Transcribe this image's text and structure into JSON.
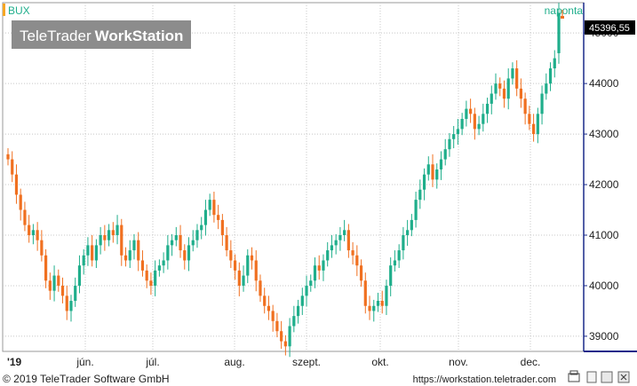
{
  "symbol": "BUX",
  "period": "naponta",
  "watermark": {
    "brand_light": "TeleTrader",
    "brand_bold": "WorkStation"
  },
  "last_price": "45396,55",
  "footer": {
    "copyright": "© 2019 TeleTrader Software GmbH",
    "url": "https://workstation.teletrader.com"
  },
  "colors": {
    "up": "#1fae8b",
    "down": "#f07020",
    "grid": "#c8c8c8",
    "axis": "#1a2a8a",
    "accent": "#f5a623"
  },
  "chart_data": {
    "type": "candlestick",
    "x_tick_labels": [
      "'19",
      "jún.",
      "júl.",
      "aug.",
      "szept.",
      "okt.",
      "nov.",
      "dec."
    ],
    "y_tick_labels": [
      "39000",
      "40000",
      "41000",
      "42000",
      "43000",
      "44000",
      "45000"
    ],
    "ylim": [
      38700,
      45600
    ],
    "grid": true,
    "series": [
      {
        "name": "BUX",
        "close": [
          42500,
          42200,
          41800,
          41500,
          41200,
          41000,
          41100,
          40900,
          40600,
          40100,
          39900,
          40200,
          40000,
          39800,
          39500,
          39700,
          40000,
          40400,
          40600,
          40800,
          40500,
          40800,
          41000,
          40900,
          41100,
          41000,
          41200,
          40600,
          40500,
          40700,
          40900,
          40500,
          40300,
          40100,
          40000,
          40300,
          40400,
          40500,
          40800,
          40900,
          41000,
          40700,
          40500,
          40800,
          40900,
          41100,
          41200,
          41500,
          41700,
          41400,
          41300,
          41000,
          40700,
          40500,
          40300,
          40000,
          40200,
          40600,
          40500,
          40100,
          39800,
          39600,
          39500,
          39300,
          39100,
          38900,
          38800,
          39200,
          39400,
          39600,
          39800,
          40000,
          40100,
          40400,
          40300,
          40500,
          40700,
          40800,
          40900,
          41000,
          41100,
          40700,
          40600,
          40400,
          40100,
          39600,
          39500,
          39600,
          39700,
          39600,
          40000,
          40400,
          40500,
          40700,
          41000,
          41100,
          41300,
          41700,
          41900,
          42200,
          42400,
          42100,
          42300,
          42500,
          42700,
          42900,
          43000,
          43100,
          43300,
          43500,
          43400,
          43100,
          43200,
          43400,
          43600,
          43800,
          44000,
          43900,
          43700,
          44100,
          44300,
          43900,
          43700,
          43400,
          43200,
          43000,
          43400,
          43800,
          44000,
          44300,
          44500,
          45396.55
        ],
        "open": [
          42600,
          42500,
          42200,
          41800,
          41500,
          41200,
          41000,
          41100,
          40900,
          40600,
          40100,
          39900,
          40200,
          40000,
          39800,
          39500,
          39700,
          40000,
          40400,
          40600,
          40800,
          40500,
          40800,
          41000,
          40900,
          41100,
          41000,
          41200,
          40600,
          40500,
          40700,
          40900,
          40500,
          40300,
          40100,
          40000,
          40300,
          40400,
          40500,
          40800,
          40900,
          41000,
          40700,
          40500,
          40800,
          40900,
          41100,
          41200,
          41500,
          41700,
          41400,
          41300,
          41000,
          40700,
          40500,
          40300,
          40000,
          40200,
          40600,
          40500,
          40100,
          39800,
          39600,
          39500,
          39300,
          39100,
          38900,
          38800,
          39200,
          39400,
          39600,
          39800,
          40000,
          40100,
          40400,
          40300,
          40500,
          40700,
          40800,
          40900,
          41000,
          41100,
          40700,
          40600,
          40400,
          40100,
          39600,
          39500,
          39600,
          39700,
          39600,
          40000,
          40400,
          40500,
          40700,
          41000,
          41100,
          41300,
          41700,
          41900,
          42200,
          42400,
          42100,
          42300,
          42500,
          42700,
          42900,
          43000,
          43100,
          43300,
          43500,
          43400,
          43100,
          43200,
          43400,
          43600,
          43800,
          44000,
          43900,
          43700,
          44100,
          44300,
          43900,
          43700,
          43400,
          43200,
          43000,
          43400,
          43800,
          44000,
          44300,
          44600
        ]
      }
    ]
  }
}
